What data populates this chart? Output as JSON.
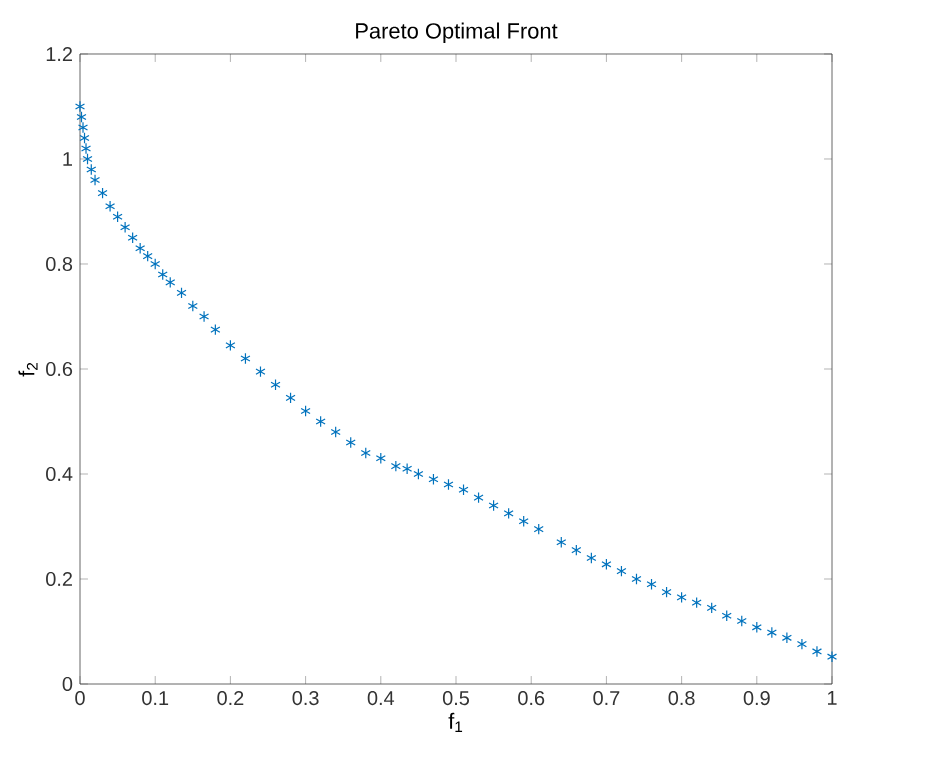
{
  "chart_data": {
    "type": "scatter",
    "title": "Pareto Optimal Front",
    "xlabel": "f$_{1}$",
    "ylabel": "f$_{2}$",
    "xlim": [
      0,
      1
    ],
    "ylim": [
      0,
      1.2
    ],
    "xticks": [
      0,
      0.1,
      0.2,
      0.3,
      0.4,
      0.5,
      0.6,
      0.7,
      0.8,
      0.9,
      1
    ],
    "yticks": [
      0,
      0.2,
      0.4,
      0.6,
      0.8,
      1,
      1.2
    ],
    "grid": false,
    "marker": "cross",
    "series": [
      {
        "color": "#0072bd",
        "x": [
          0,
          0.002,
          0.004,
          0.006,
          0.008,
          0.01,
          0.015,
          0.02,
          0.03,
          0.04,
          0.05,
          0.06,
          0.07,
          0.08,
          0.09,
          0.1,
          0.11,
          0.12,
          0.135,
          0.15,
          0.165,
          0.18,
          0.2,
          0.22,
          0.24,
          0.26,
          0.28,
          0.3,
          0.32,
          0.34,
          0.36,
          0.38,
          0.4,
          0.42,
          0.435,
          0.45,
          0.47,
          0.49,
          0.51,
          0.53,
          0.55,
          0.57,
          0.59,
          0.61,
          0.64,
          0.66,
          0.68,
          0.7,
          0.72,
          0.74,
          0.76,
          0.78,
          0.8,
          0.82,
          0.84,
          0.86,
          0.88,
          0.9,
          0.92,
          0.94,
          0.96,
          0.98,
          1.0
        ],
        "values": [
          1.1,
          1.08,
          1.06,
          1.04,
          1.02,
          1.0,
          0.98,
          0.96,
          0.935,
          0.91,
          0.89,
          0.87,
          0.85,
          0.83,
          0.815,
          0.8,
          0.78,
          0.765,
          0.745,
          0.72,
          0.7,
          0.675,
          0.645,
          0.62,
          0.595,
          0.57,
          0.545,
          0.52,
          0.5,
          0.48,
          0.46,
          0.44,
          0.43,
          0.415,
          0.41,
          0.4,
          0.39,
          0.38,
          0.37,
          0.355,
          0.34,
          0.325,
          0.31,
          0.295,
          0.27,
          0.255,
          0.24,
          0.228,
          0.215,
          0.2,
          0.19,
          0.175,
          0.165,
          0.155,
          0.145,
          0.13,
          0.12,
          0.108,
          0.098,
          0.088,
          0.076,
          0.062,
          0.052
        ]
      }
    ]
  }
}
